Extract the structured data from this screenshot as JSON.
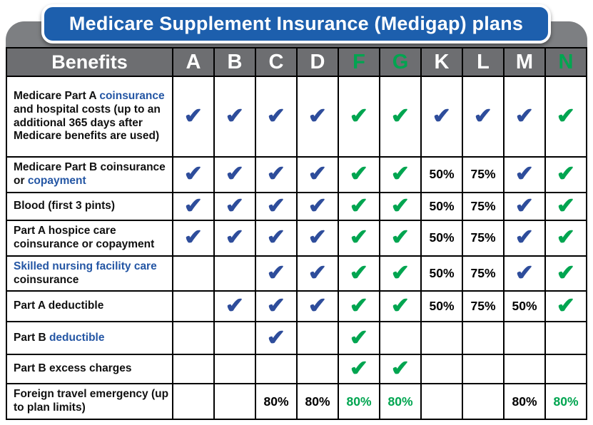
{
  "banner": {
    "title": "Medicare Supplement Insurance (Medigap) plans"
  },
  "icons": {
    "check": "✔"
  },
  "colors": {
    "banner_blue": "#1d5fad",
    "ribbon_gray": "#7d7f82",
    "header_gray": "#6d6e71",
    "plan_green": "#00a550",
    "check_blue": "#2e4d9b",
    "check_green": "#00a550",
    "link_blue": "#2456a4"
  },
  "chart_data": {
    "type": "table",
    "title": "Medicare Supplement Insurance (Medigap) plans",
    "header": {
      "benefits_label": "Benefits",
      "plans": [
        {
          "label": "A",
          "highlight": false
        },
        {
          "label": "B",
          "highlight": false
        },
        {
          "label": "C",
          "highlight": false
        },
        {
          "label": "D",
          "highlight": false
        },
        {
          "label": "F",
          "highlight": true
        },
        {
          "label": "G",
          "highlight": true
        },
        {
          "label": "K",
          "highlight": false
        },
        {
          "label": "L",
          "highlight": false
        },
        {
          "label": "M",
          "highlight": false
        },
        {
          "label": "N",
          "highlight": true
        }
      ]
    },
    "rows": [
      {
        "benefit_segments": [
          {
            "text": "Medicare Part A ",
            "link": false
          },
          {
            "text": "coinsurance",
            "link": true
          },
          {
            "text": " and hospital costs (up to an additional 365 days after Medicare benefits are used)",
            "link": false
          }
        ],
        "cells": [
          {
            "type": "check",
            "color": "blue"
          },
          {
            "type": "check",
            "color": "blue"
          },
          {
            "type": "check",
            "color": "blue"
          },
          {
            "type": "check",
            "color": "blue"
          },
          {
            "type": "check",
            "color": "green"
          },
          {
            "type": "check",
            "color": "green"
          },
          {
            "type": "check",
            "color": "blue"
          },
          {
            "type": "check",
            "color": "blue"
          },
          {
            "type": "check",
            "color": "blue"
          },
          {
            "type": "check",
            "color": "green"
          }
        ]
      },
      {
        "benefit_segments": [
          {
            "text": "Medicare Part B coinsurance or ",
            "link": false
          },
          {
            "text": "copayment",
            "link": true
          }
        ],
        "cells": [
          {
            "type": "check",
            "color": "blue"
          },
          {
            "type": "check",
            "color": "blue"
          },
          {
            "type": "check",
            "color": "blue"
          },
          {
            "type": "check",
            "color": "blue"
          },
          {
            "type": "check",
            "color": "green"
          },
          {
            "type": "check",
            "color": "green"
          },
          {
            "type": "text",
            "value": "50%",
            "color": "black"
          },
          {
            "type": "text",
            "value": "75%",
            "color": "black"
          },
          {
            "type": "check",
            "color": "blue"
          },
          {
            "type": "check",
            "color": "green"
          }
        ]
      },
      {
        "benefit_segments": [
          {
            "text": "Blood (first 3 pints)",
            "link": false
          }
        ],
        "cells": [
          {
            "type": "check",
            "color": "blue"
          },
          {
            "type": "check",
            "color": "blue"
          },
          {
            "type": "check",
            "color": "blue"
          },
          {
            "type": "check",
            "color": "blue"
          },
          {
            "type": "check",
            "color": "green"
          },
          {
            "type": "check",
            "color": "green"
          },
          {
            "type": "text",
            "value": "50%",
            "color": "black"
          },
          {
            "type": "text",
            "value": "75%",
            "color": "black"
          },
          {
            "type": "check",
            "color": "blue"
          },
          {
            "type": "check",
            "color": "green"
          }
        ]
      },
      {
        "benefit_segments": [
          {
            "text": "Part A hospice care coinsurance or copayment",
            "link": false
          }
        ],
        "cells": [
          {
            "type": "check",
            "color": "blue"
          },
          {
            "type": "check",
            "color": "blue"
          },
          {
            "type": "check",
            "color": "blue"
          },
          {
            "type": "check",
            "color": "blue"
          },
          {
            "type": "check",
            "color": "green"
          },
          {
            "type": "check",
            "color": "green"
          },
          {
            "type": "text",
            "value": "50%",
            "color": "black"
          },
          {
            "type": "text",
            "value": "75%",
            "color": "black"
          },
          {
            "type": "check",
            "color": "blue"
          },
          {
            "type": "check",
            "color": "green"
          }
        ]
      },
      {
        "benefit_segments": [
          {
            "text": "Skilled nursing facility care",
            "link": true
          },
          {
            "text": " coinsurance",
            "link": false
          }
        ],
        "cells": [
          {
            "type": "empty"
          },
          {
            "type": "empty"
          },
          {
            "type": "check",
            "color": "blue"
          },
          {
            "type": "check",
            "color": "blue"
          },
          {
            "type": "check",
            "color": "green"
          },
          {
            "type": "check",
            "color": "green"
          },
          {
            "type": "text",
            "value": "50%",
            "color": "black"
          },
          {
            "type": "text",
            "value": "75%",
            "color": "black"
          },
          {
            "type": "check",
            "color": "blue"
          },
          {
            "type": "check",
            "color": "green"
          }
        ]
      },
      {
        "benefit_segments": [
          {
            "text": "Part A deductible",
            "link": false
          }
        ],
        "cells": [
          {
            "type": "empty"
          },
          {
            "type": "check",
            "color": "blue"
          },
          {
            "type": "check",
            "color": "blue"
          },
          {
            "type": "check",
            "color": "blue"
          },
          {
            "type": "check",
            "color": "green"
          },
          {
            "type": "check",
            "color": "green"
          },
          {
            "type": "text",
            "value": "50%",
            "color": "black"
          },
          {
            "type": "text",
            "value": "75%",
            "color": "black"
          },
          {
            "type": "text",
            "value": "50%",
            "color": "black"
          },
          {
            "type": "check",
            "color": "green"
          }
        ]
      },
      {
        "benefit_segments": [
          {
            "text": "Part B ",
            "link": false
          },
          {
            "text": "deductible",
            "link": true
          }
        ],
        "cells": [
          {
            "type": "empty"
          },
          {
            "type": "empty"
          },
          {
            "type": "check",
            "color": "blue"
          },
          {
            "type": "empty"
          },
          {
            "type": "check",
            "color": "green"
          },
          {
            "type": "empty"
          },
          {
            "type": "empty"
          },
          {
            "type": "empty"
          },
          {
            "type": "empty"
          },
          {
            "type": "empty"
          }
        ]
      },
      {
        "benefit_segments": [
          {
            "text": "Part B excess charges",
            "link": false
          }
        ],
        "cells": [
          {
            "type": "empty"
          },
          {
            "type": "empty"
          },
          {
            "type": "empty"
          },
          {
            "type": "empty"
          },
          {
            "type": "check",
            "color": "green"
          },
          {
            "type": "check",
            "color": "green"
          },
          {
            "type": "empty"
          },
          {
            "type": "empty"
          },
          {
            "type": "empty"
          },
          {
            "type": "empty"
          }
        ]
      },
      {
        "benefit_segments": [
          {
            "text": "Foreign travel emergency (up to plan limits)",
            "link": false
          }
        ],
        "cells": [
          {
            "type": "empty"
          },
          {
            "type": "empty"
          },
          {
            "type": "text",
            "value": "80%",
            "color": "black"
          },
          {
            "type": "text",
            "value": "80%",
            "color": "black"
          },
          {
            "type": "text",
            "value": "80%",
            "color": "green"
          },
          {
            "type": "text",
            "value": "80%",
            "color": "green"
          },
          {
            "type": "empty"
          },
          {
            "type": "empty"
          },
          {
            "type": "text",
            "value": "80%",
            "color": "black"
          },
          {
            "type": "text",
            "value": "80%",
            "color": "green"
          }
        ]
      }
    ]
  }
}
